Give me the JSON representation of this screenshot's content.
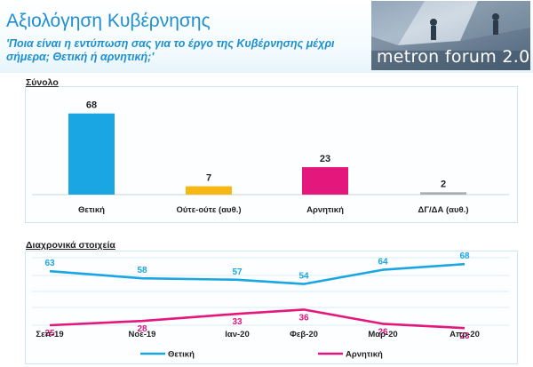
{
  "header": {
    "title": "Αξιολόγηση Κυβέρνησης",
    "subtitle": "'Ποια είναι η εντύπωση σας για το έργο της Κυβέρνησης μέχρι σήμερα; Θετική ή αρνητική;'",
    "logo_text": "metron forum 2.0"
  },
  "colors": {
    "bar_colors": [
      "#1aa5e3",
      "#f7b815",
      "#e3177c",
      "#a9adb2"
    ],
    "positive": "#1aa5e3",
    "negative": "#e3177c",
    "title": "#1f8fcf"
  },
  "chart_data": [
    {
      "type": "bar",
      "title": "Σύνολο",
      "categories": [
        "Θετική",
        "Ούτε-ούτε (αυθ.)",
        "Αρνητική",
        "ΔΓ/ΔΑ (αυθ.)"
      ],
      "values": [
        68,
        7,
        23,
        2
      ],
      "ylim": [
        0,
        70
      ],
      "grid": false
    },
    {
      "type": "line",
      "title": "Διαχρονικά στοιχεία",
      "categories": [
        "Σεπ-19",
        "Νοε-19",
        "Ιαν-20",
        "Φεβ-20",
        "Μαρ-20",
        "Απρ-20"
      ],
      "series": [
        {
          "name": "Θετική",
          "values": [
            63,
            58,
            57,
            54,
            64,
            68
          ]
        },
        {
          "name": "Αρνητική",
          "values": [
            25,
            28,
            33,
            36,
            26,
            23
          ]
        }
      ],
      "legend": "bottom",
      "grid": true
    }
  ]
}
